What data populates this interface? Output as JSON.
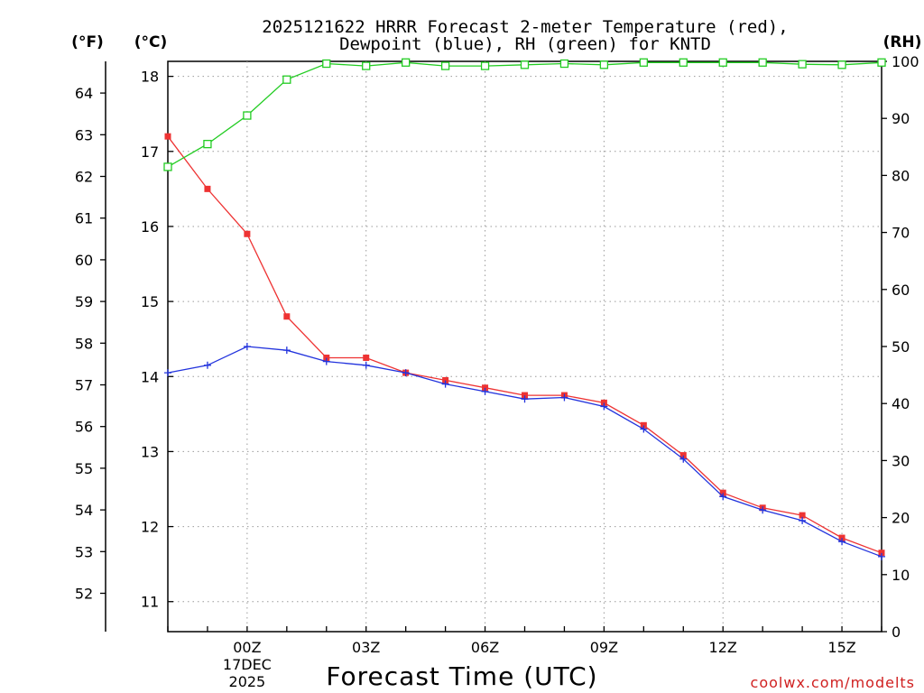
{
  "chart_data": {
    "type": "line",
    "title": [
      "2025121622 HRRR Forecast 2-meter Temperature (red),",
      "Dewpoint (blue), RH (green) for KNTD"
    ],
    "xlabel": "Forecast Time (UTC)",
    "credit": "coolwx.com/modelts",
    "unit_labels": {
      "fahrenheit": "(°F)",
      "celsius": "(°C)",
      "rh": "(RH)"
    },
    "x_hours": [
      22,
      23,
      24,
      25,
      26,
      27,
      28,
      29,
      30,
      31,
      32,
      33,
      34,
      35,
      36,
      37,
      38,
      39,
      40
    ],
    "x_ticks": [
      {
        "hour": 24,
        "lines": [
          "00Z",
          "17DEC",
          "2025"
        ]
      },
      {
        "hour": 27,
        "lines": [
          "03Z"
        ]
      },
      {
        "hour": 30,
        "lines": [
          "06Z"
        ]
      },
      {
        "hour": 33,
        "lines": [
          "09Z"
        ]
      },
      {
        "hour": 36,
        "lines": [
          "12Z"
        ]
      },
      {
        "hour": 39,
        "lines": [
          "15Z"
        ]
      }
    ],
    "ylim_celsius": [
      10.6,
      18.2
    ],
    "ylim_rh": [
      0,
      100
    ],
    "celsius_ticks": [
      11,
      12,
      13,
      14,
      15,
      16,
      17,
      18
    ],
    "fahrenheit_ticks": [
      52,
      53,
      54,
      55,
      56,
      57,
      58,
      59,
      60,
      61,
      62,
      63,
      64
    ],
    "rh_ticks": [
      0,
      10,
      20,
      30,
      40,
      50,
      60,
      70,
      80,
      90,
      100
    ],
    "series": [
      {
        "name": "Temperature",
        "axis": "celsius",
        "color": "#ee3333",
        "marker": "square",
        "values": [
          17.2,
          16.5,
          15.9,
          14.8,
          14.25,
          14.25,
          14.05,
          13.95,
          13.85,
          13.75,
          13.75,
          13.65,
          13.35,
          12.95,
          12.45,
          12.25,
          12.15,
          11.85,
          11.65
        ]
      },
      {
        "name": "Dewpoint",
        "axis": "celsius",
        "color": "#2233dd",
        "marker": "plus",
        "values": [
          14.05,
          14.15,
          14.4,
          14.35,
          14.2,
          14.15,
          14.05,
          13.9,
          13.8,
          13.7,
          13.72,
          13.6,
          13.3,
          12.9,
          12.4,
          12.22,
          12.08,
          11.8,
          11.6
        ]
      },
      {
        "name": "RH",
        "axis": "rh",
        "color": "#22cc22",
        "marker": "open-square",
        "values": [
          81.5,
          85.5,
          90.5,
          96.8,
          99.6,
          99.2,
          99.8,
          99.2,
          99.2,
          99.4,
          99.6,
          99.4,
          99.8,
          99.8,
          99.8,
          99.8,
          99.5,
          99.4,
          99.8
        ]
      }
    ]
  }
}
